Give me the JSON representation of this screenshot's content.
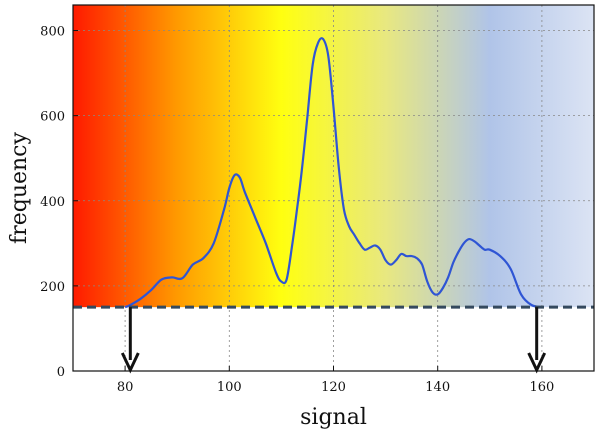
{
  "chart_data": {
    "type": "line",
    "xlabel": "signal",
    "ylabel": "frequency",
    "xlim": [
      70,
      170
    ],
    "ylim": [
      0,
      860
    ],
    "xticks": [
      80,
      100,
      120,
      140,
      160
    ],
    "yticks": [
      0,
      200,
      400,
      600,
      800
    ],
    "grid": true,
    "background_gradient": [
      "#ff1a00",
      "#ff9a00",
      "#ffff10",
      "#e8e880",
      "#b0c4e8",
      "#dce4f4"
    ],
    "series": [
      {
        "color": "#2f55d4",
        "x": [
          80,
          81,
          83,
          85,
          87,
          89,
          91,
          93,
          95,
          97,
          99,
          100,
          101,
          102,
          103,
          105,
          107,
          109,
          110,
          111,
          112,
          113,
          114,
          115,
          116,
          117,
          118,
          119,
          120,
          121,
          122,
          123,
          124,
          125,
          126,
          127,
          128,
          129,
          130,
          131,
          132,
          133,
          134,
          135,
          136,
          137,
          138,
          139,
          140,
          141,
          142,
          143,
          144,
          145,
          146,
          147,
          148,
          149,
          150,
          152,
          154,
          156,
          158,
          160
        ],
        "y": [
          150,
          155,
          170,
          190,
          215,
          220,
          218,
          250,
          265,
          300,
          380,
          430,
          460,
          455,
          420,
          360,
          300,
          230,
          210,
          215,
          290,
          380,
          480,
          600,
          720,
          770,
          780,
          740,
          620,
          480,
          380,
          340,
          320,
          300,
          285,
          290,
          295,
          285,
          260,
          250,
          260,
          275,
          270,
          270,
          265,
          250,
          210,
          185,
          180,
          195,
          220,
          255,
          280,
          300,
          310,
          305,
          295,
          285,
          285,
          270,
          240,
          180,
          155,
          150
        ]
      }
    ],
    "threshold": {
      "y": 150,
      "style": "dashed",
      "color": "#34495e"
    },
    "markers": [
      {
        "x": 81,
        "type": "down-arrow"
      },
      {
        "x": 159,
        "type": "down-arrow"
      }
    ]
  }
}
